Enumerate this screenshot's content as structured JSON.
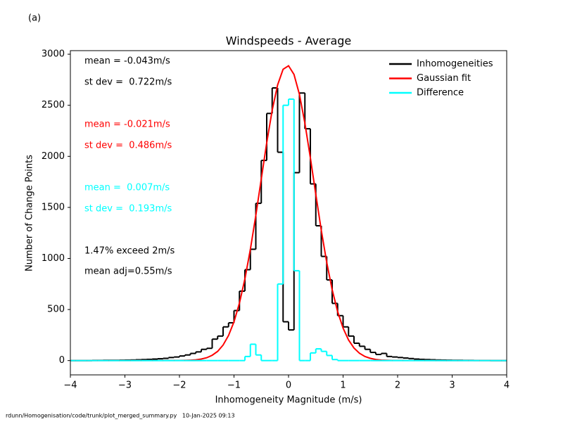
{
  "panel_label": "(a)",
  "footer": "rdunn/Homogenisation/code/trunk/plot_merged_summary.py   10-Jan-2025 09:13",
  "chart_data": {
    "type": "histogram",
    "title": "Windspeeds - Average",
    "xlabel": "Inhomogeneity Magnitude (m/s)",
    "ylabel": "Number of Change Points",
    "xlim": [
      -4,
      4
    ],
    "ylim": [
      -140,
      3035
    ],
    "xticks": [
      {
        "value": -4,
        "label": "−4"
      },
      {
        "value": -3,
        "label": "−3"
      },
      {
        "value": -2,
        "label": "−2"
      },
      {
        "value": -1,
        "label": "−1"
      },
      0,
      1,
      2,
      3,
      4
    ],
    "yticks": [
      0,
      500,
      1000,
      1500,
      2000,
      2500,
      3000
    ],
    "legend": "upper right",
    "bins": [
      -4.0,
      -3.9,
      -3.8,
      -3.7,
      -3.6,
      -3.5,
      -3.4,
      -3.3,
      -3.2,
      -3.1,
      -3.0,
      -2.9,
      -2.8,
      -2.7,
      -2.6,
      -2.5,
      -2.4,
      -2.3,
      -2.2,
      -2.1,
      -2.0,
      -1.9,
      -1.8,
      -1.7,
      -1.6,
      -1.5,
      -1.4,
      -1.3,
      -1.2,
      -1.1,
      -1.0,
      -0.9,
      -0.8,
      -0.7,
      -0.6,
      -0.5,
      -0.4,
      -0.3,
      -0.2,
      -0.1,
      0.0,
      0.1,
      0.2,
      0.3,
      0.4,
      0.5,
      0.6,
      0.7,
      0.8,
      0.9,
      1.0,
      1.1,
      1.2,
      1.3,
      1.4,
      1.5,
      1.6,
      1.7,
      1.8,
      1.9,
      2.0,
      2.1,
      2.2,
      2.3,
      2.4,
      2.5,
      2.6,
      2.7,
      2.8,
      2.9,
      3.0,
      3.1,
      3.2,
      3.3,
      3.4,
      3.5,
      3.6,
      3.7,
      3.8,
      3.9,
      4.0
    ],
    "series": [
      {
        "name": "Inhomogeneities",
        "color": "#000000",
        "values": [
          0,
          0,
          0,
          0,
          2,
          2,
          3,
          3,
          3,
          4,
          5,
          6,
          8,
          10,
          12,
          15,
          18,
          22,
          30,
          35,
          45,
          55,
          70,
          85,
          110,
          120,
          210,
          240,
          330,
          370,
          490,
          680,
          890,
          1090,
          1540,
          1960,
          2420,
          2670,
          2040,
          380,
          300,
          1840,
          2620,
          2270,
          1730,
          1320,
          1020,
          790,
          560,
          440,
          330,
          240,
          170,
          140,
          110,
          80,
          60,
          70,
          40,
          35,
          30,
          25,
          20,
          15,
          12,
          10,
          8,
          6,
          5,
          4,
          3,
          3,
          2,
          2,
          1,
          1,
          1,
          0,
          0,
          0
        ]
      },
      {
        "name": "Gaussian fit",
        "color": "#ff0000",
        "type": "line",
        "x": [
          -4,
          -2,
          -1.9,
          -1.8,
          -1.7,
          -1.6,
          -1.5,
          -1.4,
          -1.3,
          -1.2,
          -1.1,
          -1.0,
          -0.9,
          -0.8,
          -0.7,
          -0.6,
          -0.5,
          -0.4,
          -0.3,
          -0.2,
          -0.1,
          0,
          0.1,
          0.2,
          0.3,
          0.4,
          0.5,
          0.6,
          0.7,
          0.8,
          0.9,
          1.0,
          1.1,
          1.2,
          1.3,
          1.4,
          1.5,
          1.6,
          1.7,
          1.8,
          1.9,
          2,
          4
        ],
        "values": [
          0,
          1,
          2,
          4,
          7,
          15,
          28,
          52,
          90,
          152,
          246,
          380,
          563,
          800,
          1089,
          1421,
          1778,
          2133,
          2451,
          2700,
          2852,
          2887,
          2802,
          2606,
          2324,
          1986,
          1627,
          1277,
          962,
          694,
          480,
          318,
          202,
          123,
          72,
          40,
          22,
          11,
          5,
          3,
          1,
          1,
          0
        ]
      },
      {
        "name": "Difference",
        "color": "#00ffff",
        "values": [
          0,
          0,
          0,
          0,
          0,
          0,
          0,
          0,
          0,
          0,
          0,
          0,
          0,
          0,
          0,
          0,
          0,
          0,
          0,
          0,
          0,
          0,
          0,
          0,
          0,
          0,
          0,
          0,
          0,
          0,
          0,
          0,
          40,
          160,
          55,
          0,
          0,
          0,
          750,
          2500,
          2560,
          880,
          0,
          0,
          75,
          115,
          90,
          50,
          10,
          0,
          0,
          0,
          0,
          0,
          0,
          0,
          0,
          0,
          0,
          0,
          0,
          0,
          0,
          0,
          0,
          0,
          0,
          0,
          0,
          0,
          0,
          0,
          0,
          0,
          0,
          0,
          0,
          0,
          0,
          0
        ]
      }
    ],
    "annotations": [
      {
        "text": "mean = -0.043m/s",
        "color": "#000000"
      },
      {
        "text": "st dev =  0.722m/s",
        "color": "#000000"
      },
      {
        "text": "mean = -0.021m/s",
        "color": "#ff0000"
      },
      {
        "text": "st dev =  0.486m/s",
        "color": "#ff0000"
      },
      {
        "text": "mean =  0.007m/s",
        "color": "#00ffff"
      },
      {
        "text": "st dev =  0.193m/s",
        "color": "#00ffff"
      },
      {
        "text": "1.47% exceed 2m/s",
        "color": "#000000"
      },
      {
        "text": "mean adj=0.55m/s",
        "color": "#000000"
      }
    ]
  }
}
